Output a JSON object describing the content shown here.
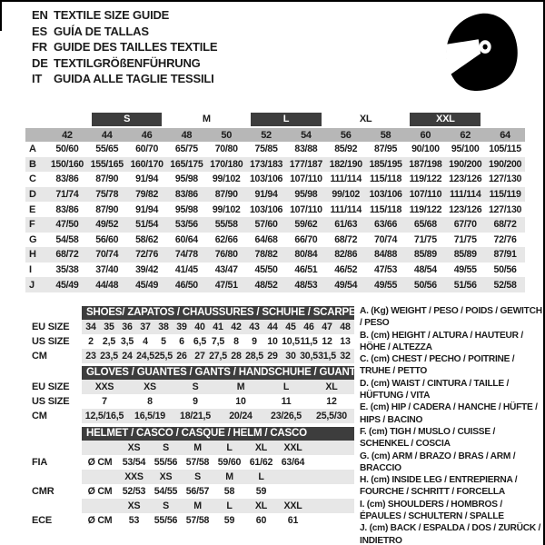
{
  "header": {
    "languages": [
      {
        "code": "EN",
        "title": "TEXTILE SIZE GUIDE"
      },
      {
        "code": "ES",
        "title": "GUÍA DE TALLAS"
      },
      {
        "code": "FR",
        "title": "GUIDE DES TAILLES TEXTILE"
      },
      {
        "code": "DE",
        "title": "TEXTILGRÖßENFÜHRUNG"
      },
      {
        "code": "IT",
        "title": "GUIDA ALLE TAGLIE TESSILI"
      }
    ],
    "icon": "racing-helmet"
  },
  "textile_table": {
    "size_groups": [
      {
        "label": "S",
        "dark": true
      },
      {
        "label": "M",
        "dark": false
      },
      {
        "label": "L",
        "dark": true
      },
      {
        "label": "XL",
        "dark": false
      },
      {
        "label": "XXL",
        "dark": true
      }
    ],
    "columns": [
      "42",
      "44",
      "46",
      "48",
      "50",
      "52",
      "54",
      "56",
      "58",
      "60",
      "62",
      "64"
    ],
    "rows": [
      {
        "letter": "A",
        "values": [
          "50/60",
          "55/65",
          "60/70",
          "65/75",
          "70/80",
          "75/85",
          "83/88",
          "85/92",
          "87/95",
          "90/100",
          "95/100",
          "105/115"
        ]
      },
      {
        "letter": "B",
        "values": [
          "150/160",
          "155/165",
          "160/170",
          "165/175",
          "170/180",
          "173/183",
          "177/187",
          "182/190",
          "185/195",
          "187/198",
          "190/200",
          "190/200"
        ]
      },
      {
        "letter": "C",
        "values": [
          "83/86",
          "87/90",
          "91/94",
          "95/98",
          "99/102",
          "103/106",
          "107/110",
          "111/114",
          "115/118",
          "119/122",
          "123/126",
          "127/130"
        ]
      },
      {
        "letter": "D",
        "values": [
          "71/74",
          "75/78",
          "79/82",
          "83/86",
          "87/90",
          "91/94",
          "95/98",
          "99/102",
          "103/106",
          "107/110",
          "111/114",
          "115/119"
        ]
      },
      {
        "letter": "E",
        "values": [
          "83/86",
          "87/90",
          "91/94",
          "95/98",
          "99/102",
          "103/106",
          "107/110",
          "111/114",
          "115/118",
          "119/122",
          "123/126",
          "127/130"
        ]
      },
      {
        "letter": "F",
        "values": [
          "47/50",
          "49/52",
          "51/54",
          "53/56",
          "55/58",
          "57/60",
          "59/62",
          "61/63",
          "63/66",
          "65/68",
          "67/70",
          "68/72"
        ]
      },
      {
        "letter": "G",
        "values": [
          "54/58",
          "56/60",
          "58/62",
          "60/64",
          "62/66",
          "64/68",
          "66/70",
          "68/72",
          "70/74",
          "71/75",
          "71/75",
          "72/76"
        ]
      },
      {
        "letter": "H",
        "values": [
          "68/72",
          "70/74",
          "72/76",
          "74/78",
          "76/80",
          "78/82",
          "80/84",
          "82/86",
          "84/88",
          "85/89",
          "85/89",
          "87/91"
        ]
      },
      {
        "letter": "I",
        "values": [
          "35/38",
          "37/40",
          "39/42",
          "41/45",
          "43/47",
          "45/50",
          "46/51",
          "46/52",
          "47/53",
          "48/54",
          "49/55",
          "50/56"
        ]
      },
      {
        "letter": "J",
        "values": [
          "45/49",
          "44/48",
          "45/49",
          "46/50",
          "47/51",
          "48/52",
          "48/53",
          "49/54",
          "49/55",
          "50/56",
          "51/56",
          "52/58"
        ]
      }
    ]
  },
  "shoes_table": {
    "title": "SHOES/ ZAPATOS / CHAUSSURES / SCHUHE / SCARPE",
    "rows": [
      {
        "label": "EU SIZE",
        "gray": true,
        "values": [
          "34",
          "35",
          "36",
          "37",
          "38",
          "39",
          "40",
          "41",
          "42",
          "43",
          "44",
          "45",
          "46",
          "47",
          "48"
        ]
      },
      {
        "label": "US SIZE",
        "gray": false,
        "values": [
          "2",
          "2,5",
          "3,5",
          "4",
          "5",
          "6",
          "6,5",
          "7,5",
          "8",
          "9",
          "10",
          "10,5",
          "11,5",
          "12",
          "13"
        ]
      },
      {
        "label": "CM",
        "gray": true,
        "values": [
          "23",
          "23,5",
          "24",
          "24,5",
          "25,5",
          "26",
          "27",
          "27,5",
          "28",
          "28,5",
          "29",
          "30",
          "30,5",
          "31,5",
          "32"
        ]
      }
    ]
  },
  "gloves_table": {
    "title": "GLOVES / GUANTES / GANTS / HANDSCHUHE / GUANTI",
    "rows": [
      {
        "label": "EU SIZE",
        "gray": true,
        "values": [
          "XXS",
          "XS",
          "S",
          "M",
          "L",
          "XL"
        ]
      },
      {
        "label": "US SIZE",
        "gray": false,
        "values": [
          "7",
          "8",
          "9",
          "10",
          "11",
          "12"
        ]
      },
      {
        "label": "CM",
        "gray": true,
        "values": [
          "12,5/16,5",
          "16,5/19",
          "18/21,5",
          "20/24",
          "23/26,5",
          "25,5/30"
        ]
      }
    ]
  },
  "helmet_table": {
    "title": "HELMET / CASCO / CASQUE / HELM / CASCO",
    "unit_label": "Ø CM",
    "sections": [
      {
        "label": "FIA",
        "sizes": [
          "XS",
          "S",
          "M",
          "L",
          "XL",
          "XXL"
        ],
        "values": [
          "53/54",
          "55/56",
          "57/58",
          "59/60",
          "61/62",
          "63/64"
        ]
      },
      {
        "label": "CMR",
        "sizes": [
          "XXS",
          "XS",
          "S",
          "M",
          "L",
          ""
        ],
        "values": [
          "52/53",
          "54/55",
          "56/57",
          "58",
          "59",
          ""
        ]
      },
      {
        "label": "ECE",
        "sizes": [
          "XS",
          "S",
          "M",
          "L",
          "XL",
          "XXL"
        ],
        "values": [
          "53",
          "55/56",
          "57/58",
          "59",
          "60",
          "61"
        ]
      }
    ]
  },
  "legend": {
    "items": [
      "A. (Kg) WEIGHT / PESO / POIDS / GEWITCH / PESO",
      "B. (cm) HEIGHT / ALTURA / HAUTEUR / HÖHE / ALTEZZA",
      "C. (cm) CHEST / PECHO / POITRINE / TRUHE / PETTO",
      "D. (cm) WAIST / CINTURA / TAILLE / HÜFTUNG / VITA",
      "E. (cm) HIP / CADERA / HANCHE / HÜFTE / HIPS / BACINO",
      "F. (cm) TIGH / MUSLO / CUISSE / SCHENKEL / COSCIA",
      "G. (cm) ARM / BRAZO / BRAS / ARM / BRACCIO",
      "H. (cm) INSIDE LEG / ENTREPIERNA / FOURCHE / SCHRITT / FORCELLA",
      "I. (cm) SHOULDERS / HOMBROS / ÉPAULES / SCHULTERN / SPALLE",
      "J. (cm) BACK / ESPALDA / DOS / ZURÜCK / INDIETRO"
    ]
  },
  "colors": {
    "dark_bar": "#3d3d3d",
    "header_band": "#b7b7b7",
    "stripe": "#e7e7e7",
    "border": "#000000",
    "text": "#1c1c1c"
  }
}
